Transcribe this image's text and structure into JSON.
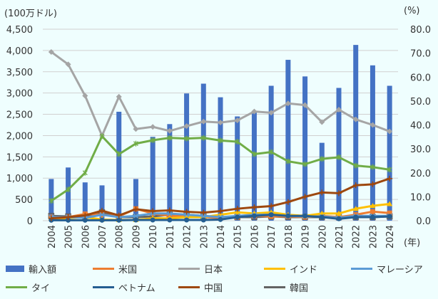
{
  "chart_data": {
    "type": "bar+line",
    "left_unit": "(100万ドル)",
    "right_unit": "(%)",
    "x_unit": "(年)",
    "categories": [
      "2004",
      "2005",
      "2006",
      "2007",
      "2008",
      "2009",
      "2010",
      "2011",
      "2012",
      "2013",
      "2014",
      "2015",
      "2016",
      "2017",
      "2018",
      "2019",
      "2020",
      "2021",
      "2022",
      "2023",
      "2024"
    ],
    "left_axis": {
      "range": [
        0,
        4500
      ],
      "ticks": [
        "0",
        "500",
        "1,000",
        "1,500",
        "2,000",
        "2,500",
        "3,000",
        "3,500",
        "4,000",
        "4,500"
      ]
    },
    "right_axis": {
      "range": [
        0,
        80
      ],
      "ticks": [
        "0.0",
        "10.0",
        "20.0",
        "30.0",
        "40.0",
        "50.0",
        "60.0",
        "70.0",
        "80.0"
      ]
    },
    "grid": true,
    "legend_position": "bottom",
    "bar_series": {
      "name": "輸入額",
      "color": "#4472c4",
      "values": [
        980,
        1250,
        900,
        830,
        2560,
        980,
        1970,
        2270,
        2990,
        3220,
        2900,
        2450,
        2580,
        3170,
        3780,
        3390,
        1830,
        3120,
        4130,
        3650,
        3170
      ]
    },
    "line_series": [
      {
        "name": "米国",
        "color": "#ed7d31",
        "marker": "square",
        "values": [
          1.5,
          1.5,
          2.8,
          2.5,
          1.8,
          5.0,
          3.0,
          2.0,
          1.8,
          1.5,
          1.2,
          1.5,
          2.0,
          1.8,
          1.8,
          1.5,
          2.0,
          1.5,
          2.5,
          3.8,
          3.2
        ]
      },
      {
        "name": "日本",
        "color": "#a5a5a5",
        "marker": "diamond",
        "values": [
          70.5,
          65.3,
          52.2,
          35.5,
          51.8,
          38.3,
          39.2,
          37.5,
          39.5,
          41.4,
          41.0,
          41.9,
          45.6,
          45.1,
          49.0,
          48.3,
          41.2,
          46.4,
          42.3,
          40.0,
          37.3
        ]
      },
      {
        "name": "インド",
        "color": "#ffc000",
        "marker": "triangle",
        "values": [
          1.0,
          1.0,
          1.5,
          0.5,
          0.3,
          0.3,
          1.0,
          1.0,
          1.5,
          1.5,
          2.5,
          3.5,
          3.0,
          3.5,
          2.5,
          2.0,
          3.0,
          3.0,
          5.0,
          6.2,
          7.0
        ]
      },
      {
        "name": "マレーシア",
        "color": "#5b9bd5",
        "marker": "x",
        "values": [
          1.5,
          1.5,
          1.2,
          2.5,
          1.5,
          2.0,
          3.0,
          3.0,
          2.5,
          2.0,
          1.5,
          2.0,
          2.5,
          2.5,
          2.0,
          1.8,
          1.8,
          1.2,
          2.0,
          2.0,
          2.0
        ]
      },
      {
        "name": "タイ",
        "color": "#70ad47",
        "marker": "star",
        "values": [
          8.3,
          13.0,
          20.0,
          35.3,
          27.8,
          32.2,
          33.6,
          34.6,
          34.3,
          34.6,
          33.5,
          33.0,
          27.8,
          28.7,
          24.8,
          23.6,
          25.8,
          26.5,
          23.0,
          22.4,
          21.3
        ]
      },
      {
        "name": "ベトナム",
        "color": "#255e91",
        "marker": "circle",
        "values": [
          0.2,
          0.2,
          0.2,
          0.2,
          0.2,
          0.3,
          0.3,
          0.3,
          0.3,
          0.3,
          0.5,
          1.5,
          2.0,
          2.5,
          2.0,
          2.0,
          1.5,
          0.8,
          1.5,
          1.5,
          1.8
        ]
      },
      {
        "name": "中国",
        "color": "#9e480e",
        "marker": "plus",
        "values": [
          1.0,
          1.5,
          2.2,
          4.2,
          2.2,
          4.8,
          4.0,
          4.3,
          3.7,
          3.4,
          4.0,
          5.0,
          5.6,
          6.1,
          7.8,
          10.0,
          11.8,
          11.5,
          14.8,
          15.2,
          17.6
        ]
      },
      {
        "name": "韓国",
        "color": "#636363",
        "marker": "square-open",
        "values": [
          2.0,
          1.8,
          1.5,
          3.5,
          1.5,
          1.5,
          1.8,
          2.5,
          2.5,
          2.0,
          1.5,
          1.5,
          1.5,
          1.8,
          1.5,
          1.5,
          1.5,
          1.5,
          1.5,
          1.5,
          1.8
        ]
      }
    ]
  }
}
